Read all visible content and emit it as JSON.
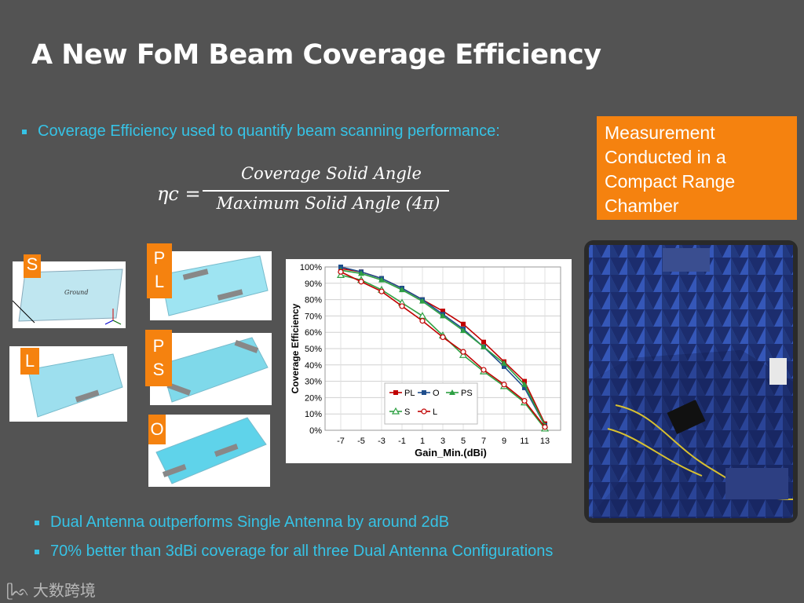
{
  "slide": {
    "title": "A New FoM Beam Coverage Efficiency",
    "bullet_top": "Coverage Efficiency used to quantify beam scanning performance:",
    "formula": {
      "lhs": "ηc =",
      "numerator": "Coverage Solid Angle",
      "denominator": "Maximum Solid Angle (4π)"
    },
    "callout": "Measurement Conducted in a Compact Range Chamber",
    "bullets_bottom": [
      "Dual Antenna outperforms Single Antenna by around 2dB",
      "70% better than 3dBi coverage for all three Dual Antenna Configurations"
    ],
    "antenna_labels": {
      "s": "S",
      "l": "L",
      "pl": "P L",
      "ps": "P S",
      "o": "O"
    },
    "ground_label": "Ground",
    "logo_text": "大数跨境",
    "colors": {
      "background": "#535353",
      "accent": "#36c3e6",
      "orange": "#f5820f"
    }
  },
  "chart_data": {
    "type": "line",
    "x": [
      -7,
      -5,
      -3,
      -1,
      1,
      3,
      5,
      7,
      9,
      11,
      13
    ],
    "xtick_labels": [
      "-7",
      "-5",
      "-3",
      "-1",
      "1",
      "3",
      "5",
      "7",
      "9",
      "11",
      "13"
    ],
    "ytick_labels": [
      "0%",
      "10%",
      "20%",
      "30%",
      "40%",
      "50%",
      "60%",
      "70%",
      "80%",
      "90%",
      "100%"
    ],
    "xlabel": "Gain_Min.(dBi)",
    "ylabel": "Coverage Efficiency",
    "ylim": [
      0,
      100
    ],
    "grid": true,
    "legend_position": "bottom-center",
    "series": [
      {
        "name": "PL",
        "color": "#c00000",
        "marker": "square",
        "values": [
          99,
          97,
          93,
          87,
          80,
          73,
          65,
          54,
          42,
          30,
          4
        ]
      },
      {
        "name": "O",
        "color": "#1f4e8c",
        "marker": "square",
        "values": [
          100,
          97,
          93,
          87,
          80,
          71,
          62,
          51,
          39,
          26,
          3
        ]
      },
      {
        "name": "PS",
        "color": "#2ea043",
        "marker": "triangle",
        "values": [
          98,
          96,
          92,
          86,
          79,
          70,
          61,
          51,
          41,
          28,
          3
        ]
      },
      {
        "name": "S",
        "color": "#2ea043",
        "marker": "triangle-open",
        "values": [
          95,
          92,
          86,
          78,
          70,
          58,
          46,
          36,
          27,
          17,
          1
        ]
      },
      {
        "name": "L",
        "color": "#c00000",
        "marker": "circle-open",
        "values": [
          97,
          91,
          85,
          76,
          67,
          57,
          48,
          37,
          28,
          18,
          2
        ]
      }
    ]
  }
}
